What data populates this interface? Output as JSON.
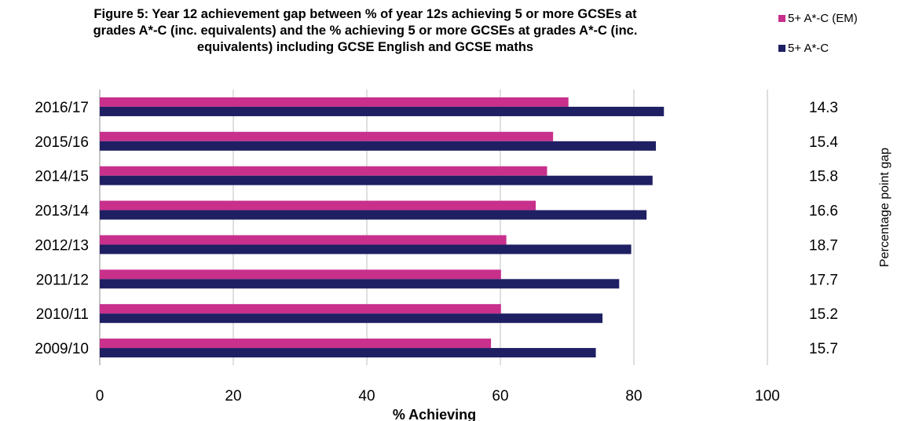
{
  "chart_data": {
    "type": "bar",
    "orientation": "horizontal",
    "title_lines": [
      "Figure 5: Year 12 achievement gap between % of year 12s achieving 5 or more GCSEs at",
      "grades A*-C  (inc. equivalents) and the % achieving 5 or more GCSEs at grades A*-C (inc.",
      "equivalents)  including GCSE English and GCSE maths"
    ],
    "categories": [
      "2016/17",
      "2015/16",
      "2014/15",
      "2013/14",
      "2012/13",
      "2011/12",
      "2010/11",
      "2009/10"
    ],
    "series": [
      {
        "name": "5+ A*-C (EM)",
        "color": "#c8308c",
        "values": [
          70.2,
          67.9,
          67.0,
          65.3,
          60.9,
          60.1,
          60.1,
          58.6
        ]
      },
      {
        "name": "5+ A*-C",
        "color": "#1f1f63",
        "values": [
          84.5,
          83.3,
          82.8,
          81.9,
          79.6,
          77.8,
          75.3,
          74.3
        ]
      }
    ],
    "secondary_labels": [
      "14.3",
      "15.4",
      "15.8",
      "16.6",
      "18.7",
      "17.7",
      "15.2",
      "15.7"
    ],
    "secondary_axis_label": "Percentage point gap",
    "xlabel": "% Achieving",
    "xlim": [
      0,
      100
    ],
    "xticks": [
      0,
      20,
      40,
      60,
      80,
      100
    ],
    "legend_position": "top-right",
    "grid": "vertical"
  }
}
